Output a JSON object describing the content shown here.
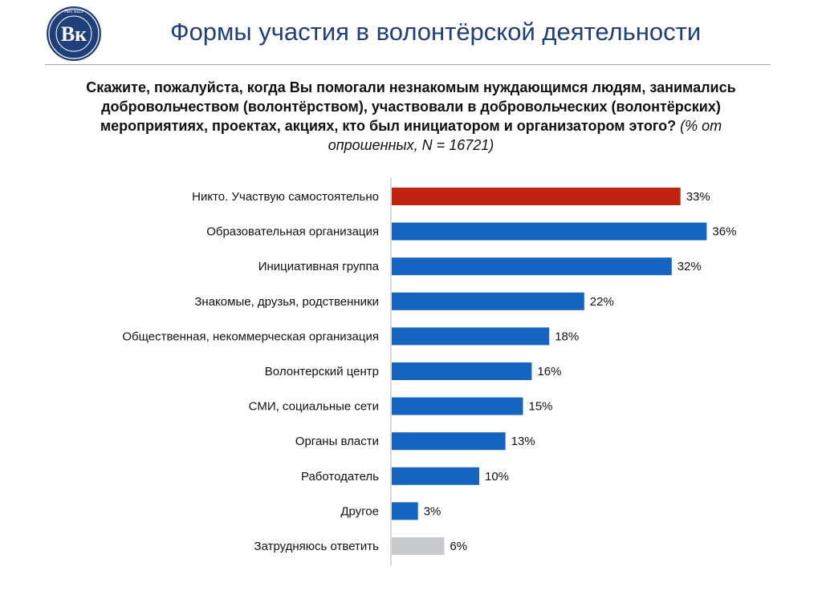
{
  "header": {
    "title": "Формы участия в волонтёрской деятельности",
    "logo_icon": "hse-university-logo",
    "logo_text": "НИУ ВШЭ"
  },
  "question": {
    "text": "Скажите, пожалуйста, когда Вы помогали незнакомым нуждающимся людям, занимались добровольчеством (волонтёрством), участвовали в добровольческих (волонтёрских) мероприятиях, проектах, акциях, кто был инициатором и организатором этого?",
    "note": "(% от опрошенных, N = 16721)"
  },
  "chart_data": {
    "type": "bar",
    "orientation": "horizontal",
    "categories": [
      "Никто. Участвую самостоятельно",
      "Образовательная организация",
      "Инициативная группа",
      "Знакомые, друзья, родственники",
      "Общественная, некоммерческая организация",
      "Волонтерский центр",
      "СМИ, социальные сети",
      "Органы власти",
      "Работодатель",
      "Другое",
      "Затрудняюсь ответить"
    ],
    "values": [
      33,
      36,
      32,
      22,
      18,
      16,
      15,
      13,
      10,
      3,
      6
    ],
    "value_labels": [
      "33%",
      "36%",
      "32%",
      "22%",
      "18%",
      "16%",
      "15%",
      "13%",
      "10%",
      "3%",
      "6%"
    ],
    "colors": [
      "#c0230f",
      "#1565c0",
      "#1565c0",
      "#1565c0",
      "#1565c0",
      "#1565c0",
      "#1565c0",
      "#1565c0",
      "#1565c0",
      "#1565c0",
      "#c8cacd"
    ],
    "unit": "%",
    "xlim": [
      0,
      40
    ],
    "grid": false,
    "legend": "none"
  }
}
